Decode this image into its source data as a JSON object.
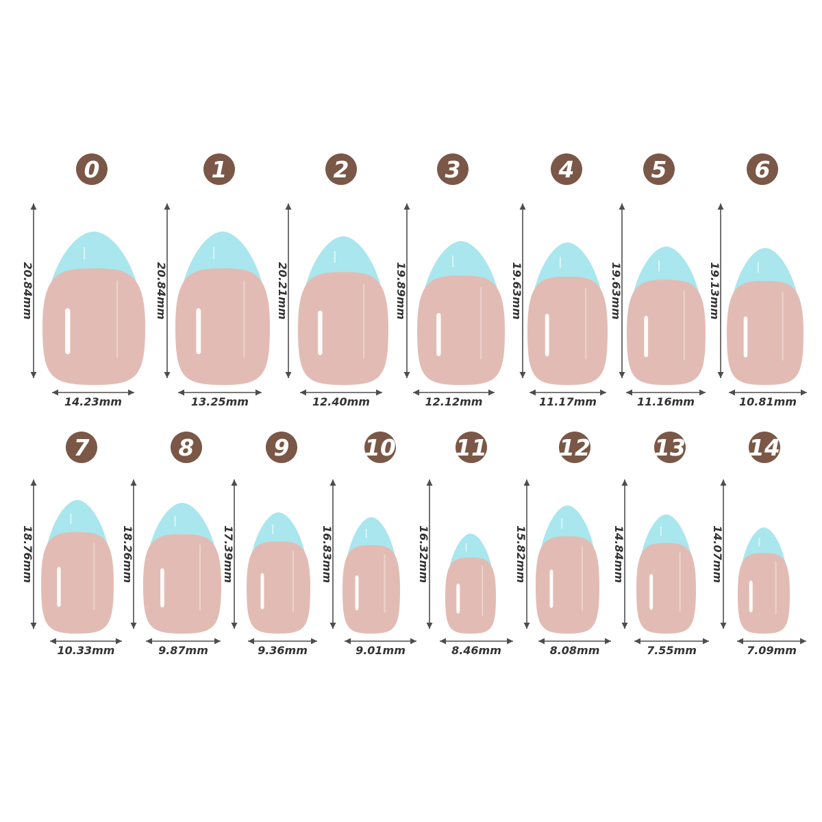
{
  "colors": {
    "badge": "#7a5746",
    "tip": "#a9e6ed",
    "nail": "#e2bcb4",
    "arrow": "#4d4d4d",
    "label": "#333333"
  },
  "sizes": [
    {
      "number": "0",
      "length": "20.84mm",
      "width": "14.23mm"
    },
    {
      "number": "1",
      "length": "20.84mm",
      "width": "13.25mm"
    },
    {
      "number": "2",
      "length": "20.21mm",
      "width": "12.40mm"
    },
    {
      "number": "3",
      "length": "19.89mm",
      "width": "12.12mm"
    },
    {
      "number": "4",
      "length": "19.63mm",
      "width": "11.17mm"
    },
    {
      "number": "5",
      "length": "19.63mm",
      "width": "11.16mm"
    },
    {
      "number": "6",
      "length": "19.13mm",
      "width": "10.81mm"
    },
    {
      "number": "7",
      "length": "18.76mm",
      "width": "10.33mm"
    },
    {
      "number": "8",
      "length": "18.26mm",
      "width": "9.87mm"
    },
    {
      "number": "9",
      "length": "17.39mm",
      "width": "9.36mm"
    },
    {
      "number": "10",
      "length": "16.83mm",
      "width": "9.01mm"
    },
    {
      "number": "11",
      "length": "16.32mm",
      "width": "8.46mm"
    },
    {
      "number": "12",
      "length": "15.82mm",
      "width": "8.08mm"
    },
    {
      "number": "13",
      "length": "14.84mm",
      "width": "7.55mm"
    },
    {
      "number": "14",
      "length": "14.07mm",
      "width": "7.09mm"
    }
  ]
}
